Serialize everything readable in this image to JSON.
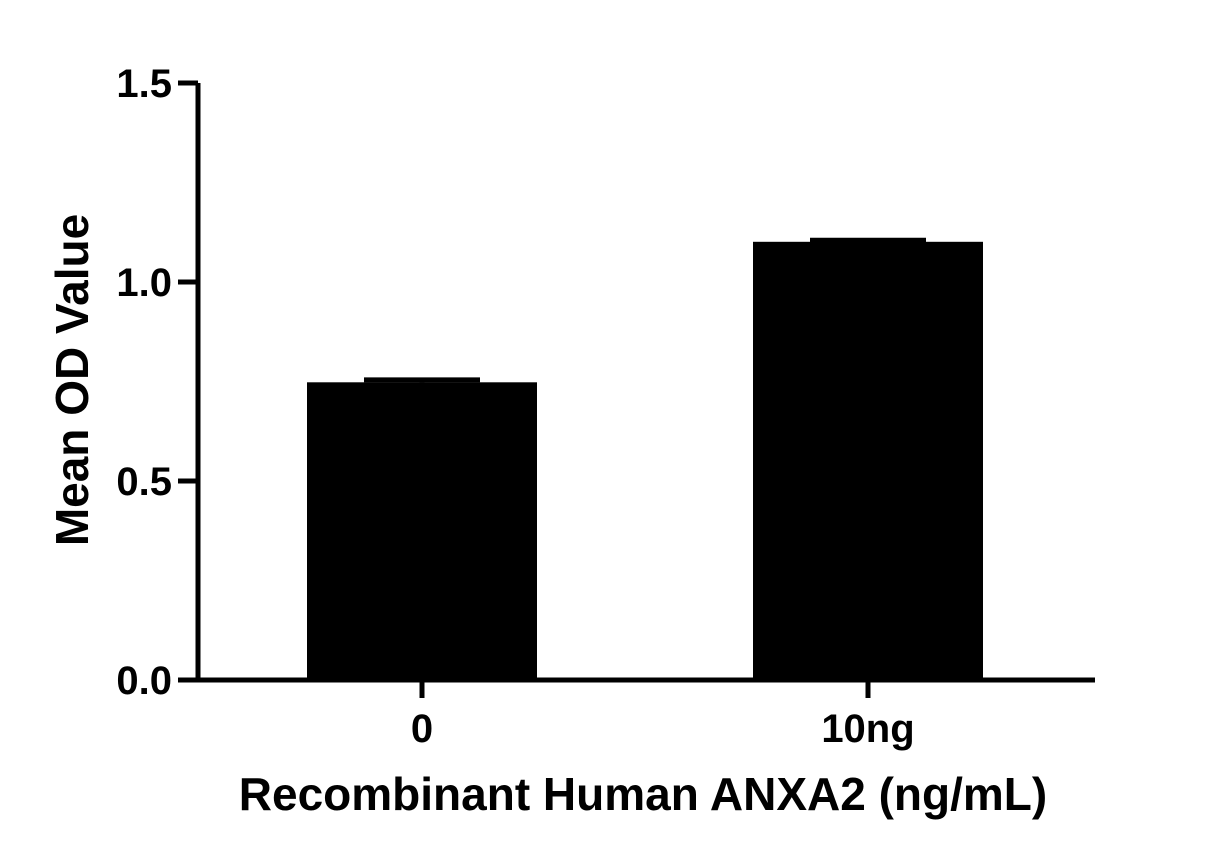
{
  "chart_data": {
    "type": "bar",
    "title": "",
    "xlabel": "Recombinant Human ANXA2 (ng/mL)",
    "ylabel": "Mean OD Value",
    "categories": [
      "0",
      "10ng"
    ],
    "values": [
      0.748,
      1.101
    ],
    "error": [
      0.006,
      0.004
    ],
    "ylim": [
      0,
      1.5
    ],
    "yticks": [
      "0.0",
      "0.5",
      "1.0",
      "1.5"
    ],
    "grid": false,
    "legend": "none",
    "colors": {
      "bar": "#000000",
      "axis": "#000000"
    }
  }
}
